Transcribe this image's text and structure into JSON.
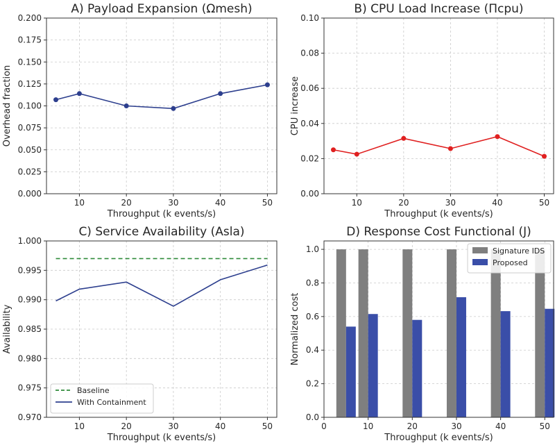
{
  "chart_data": [
    {
      "type": "line",
      "title": "A) Payload Expansion (Ωmesh)",
      "xlabel": "Throughput (k events/s)",
      "ylabel": "Overhead fraction",
      "x": [
        5,
        10,
        20,
        30,
        40,
        50
      ],
      "xlim": [
        3,
        52
      ],
      "xticks": [
        "10",
        "20",
        "30",
        "40",
        "50"
      ],
      "ylim": [
        0,
        0.2
      ],
      "yticks": [
        "0.000",
        "0.025",
        "0.050",
        "0.075",
        "0.100",
        "0.125",
        "0.150",
        "0.175",
        "0.200"
      ],
      "grid": true,
      "series": [
        {
          "name": "Overhead",
          "values": [
            0.107,
            0.114,
            0.1,
            0.097,
            0.114,
            0.124
          ],
          "color": "#2d3f8e",
          "markers": true
        }
      ]
    },
    {
      "type": "line",
      "title": "B) CPU Load Increase (Πcpu)",
      "xlabel": "Throughput (k events/s)",
      "ylabel": "CPU increase",
      "x": [
        5,
        10,
        20,
        30,
        40,
        50
      ],
      "xlim": [
        3,
        52
      ],
      "xticks": [
        "10",
        "20",
        "30",
        "40",
        "50"
      ],
      "ylim": [
        0,
        0.1
      ],
      "yticks": [
        "0.00",
        "0.02",
        "0.04",
        "0.06",
        "0.08",
        "0.10"
      ],
      "grid": true,
      "series": [
        {
          "name": "CPU increase",
          "values": [
            0.025,
            0.0225,
            0.0315,
            0.0257,
            0.0325,
            0.0213
          ],
          "color": "#e02020",
          "markers": true
        }
      ]
    },
    {
      "type": "line",
      "title": "C) Service Availability (Asla)",
      "xlabel": "Throughput (k events/s)",
      "ylabel": "Availability",
      "x": [
        5,
        10,
        20,
        30,
        40,
        50
      ],
      "xlim": [
        3,
        52
      ],
      "xticks": [
        "10",
        "20",
        "30",
        "40",
        "50"
      ],
      "ylim": [
        0.97,
        1.0
      ],
      "yticks": [
        "0.970",
        "0.975",
        "0.980",
        "0.985",
        "0.990",
        "0.995",
        "1.000"
      ],
      "grid": true,
      "legend": "lower-left",
      "series": [
        {
          "name": "Baseline",
          "values": [
            0.997,
            0.997,
            0.997,
            0.997,
            0.997,
            0.997
          ],
          "color": "#2e8b3a",
          "dashed": true
        },
        {
          "name": "With Containment",
          "values": [
            0.9898,
            0.9918,
            0.993,
            0.9889,
            0.9934,
            0.9959
          ],
          "color": "#2d3f8e"
        }
      ]
    },
    {
      "type": "bar",
      "title": "D) Response Cost Functional (J)",
      "xlabel": "Throughput (k events/s)",
      "ylabel": "Normalized cost",
      "x": [
        5,
        10,
        20,
        30,
        40,
        50
      ],
      "xlim": [
        0,
        52
      ],
      "xticks": [
        "0",
        "10",
        "20",
        "30",
        "40",
        "50"
      ],
      "ylim": [
        0,
        1.05
      ],
      "yticks": [
        "0.0",
        "0.2",
        "0.4",
        "0.6",
        "0.8",
        "1.0"
      ],
      "grid": true,
      "legend": "top-right",
      "series": [
        {
          "name": "Signature IDS",
          "values": [
            1.0,
            1.0,
            1.0,
            1.0,
            1.0,
            1.0
          ],
          "color": "#7f7f7f"
        },
        {
          "name": "Proposed",
          "values": [
            0.54,
            0.615,
            0.58,
            0.715,
            0.632,
            0.646
          ],
          "color": "#3a4ea8"
        }
      ]
    }
  ]
}
